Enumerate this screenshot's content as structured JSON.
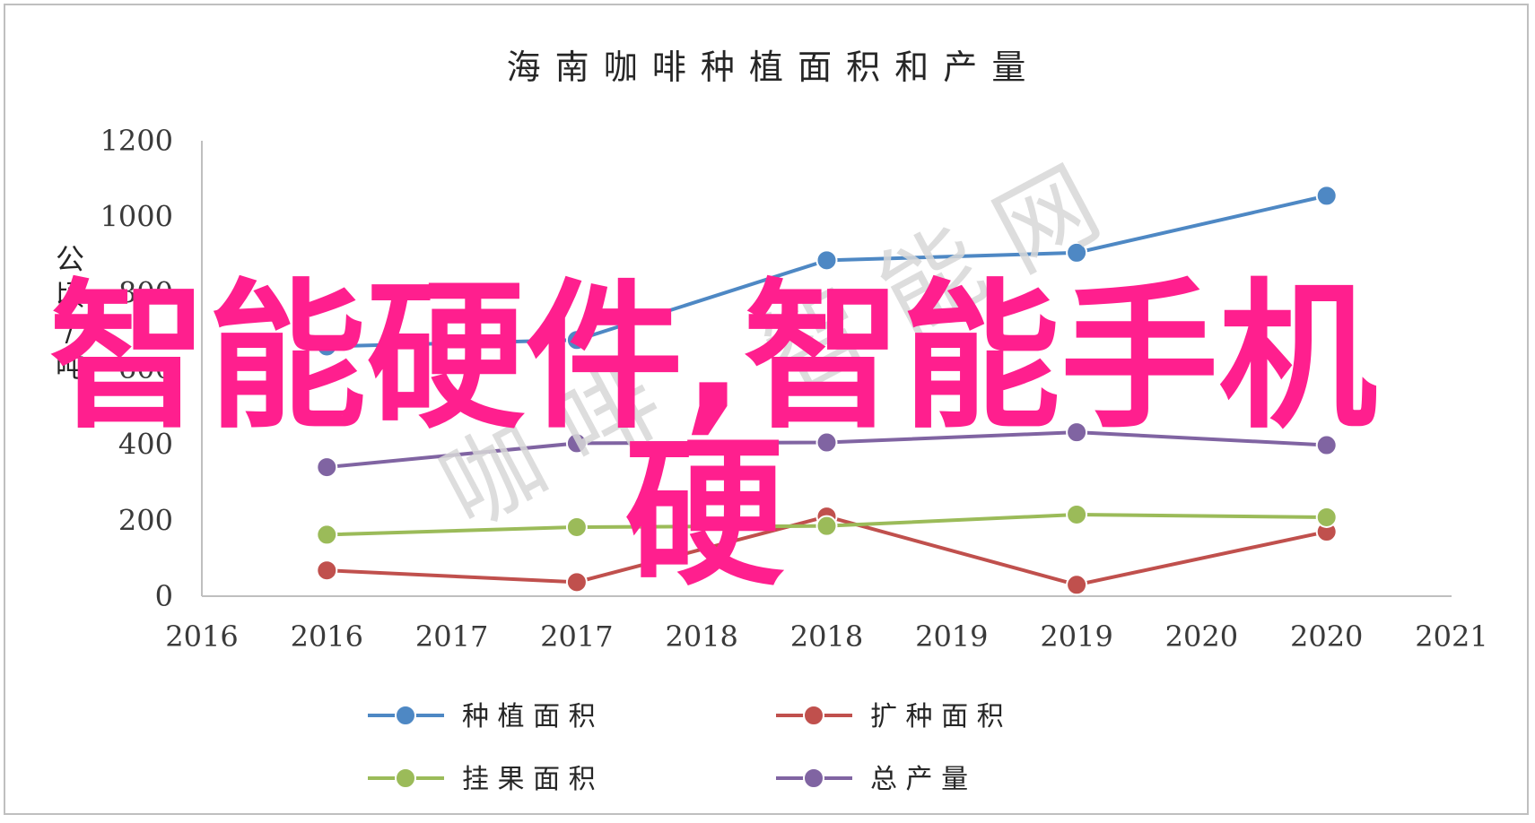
{
  "chart_data": {
    "type": "line",
    "title": "海 南 咖 啡 种 植 面 积 和 产 量",
    "ylabel": "公顷/吨",
    "ylim": [
      0,
      1200
    ],
    "yticks": [
      0,
      200,
      400,
      600,
      800,
      1000,
      1200
    ],
    "ytick_labels": [
      "0",
      "200",
      "400",
      "600",
      "800",
      "1000",
      "1200"
    ],
    "xlim": [
      2016,
      2021
    ],
    "xtick_labels": [
      "2016",
      "2016",
      "2017",
      "2017",
      "2018",
      "2018",
      "2019",
      "2019",
      "2020",
      "2020",
      "2021"
    ],
    "x": [
      2016.5,
      2017.5,
      2018.5,
      2019.5,
      2020.5
    ],
    "grid": false,
    "legend_position": "bottom",
    "series": [
      {
        "name": "种 植 面 积",
        "color": "#4e88c4",
        "values": [
          658,
          675,
          885,
          905,
          1055
        ]
      },
      {
        "name": "扩 种 面 积",
        "color": "#c0504d",
        "values": [
          68,
          37,
          210,
          30,
          170
        ]
      },
      {
        "name": "挂 果 面 积",
        "color": "#9bbb59",
        "values": [
          162,
          182,
          185,
          215,
          208
        ]
      },
      {
        "name": "总 产 量",
        "color": "#8064a2",
        "values": [
          340,
          403,
          405,
          432,
          398
        ]
      }
    ]
  },
  "overlay": {
    "line1": "智能硬件,智能手机",
    "line2": "硬",
    "color": "#ff1f8e"
  },
  "watermark": {
    "text1": "咖 啡",
    "text2": "智 能 网"
  }
}
